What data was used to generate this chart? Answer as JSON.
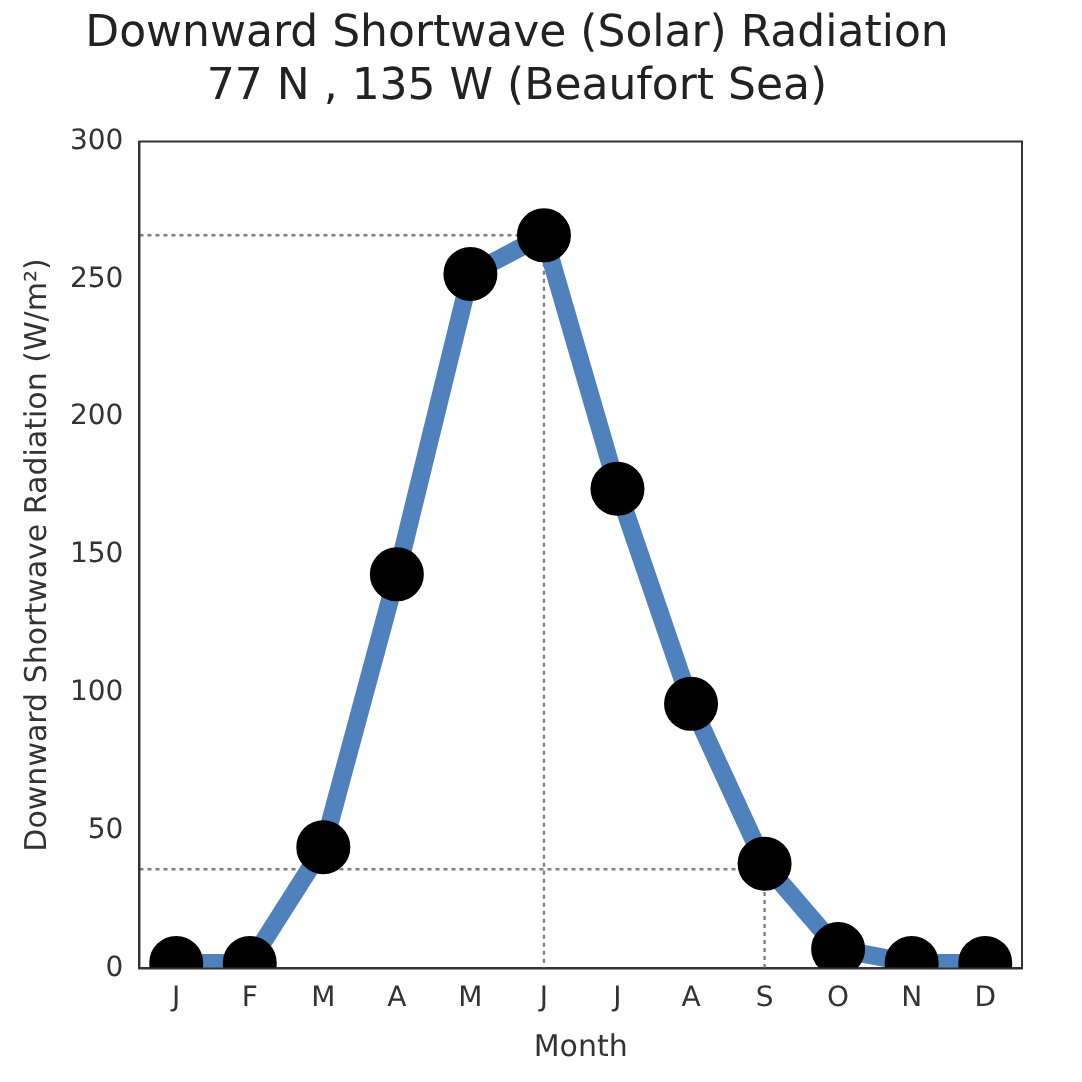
{
  "chart_data": {
    "type": "line",
    "title": "Downward Shortwave (Solar) Radiation\n77 N , 135 W (Beaufort Sea)",
    "xlabel": "Month",
    "ylabel": "Downward Shortwave Radiation (W/m²)",
    "categories": [
      "J",
      "F",
      "M",
      "A",
      "M",
      "J",
      "J",
      "A",
      "S",
      "O",
      "N",
      "D"
    ],
    "series": [
      {
        "color": "#4f81bd",
        "values": [
          2,
          2,
          44,
          143,
          252,
          266,
          174,
          96,
          38,
          7,
          2,
          2
        ]
      }
    ],
    "ylim": [
      0,
      300
    ],
    "yticks": [
      0,
      50,
      100,
      150,
      200,
      250,
      300
    ],
    "grid": false,
    "legend": false,
    "marker": "circle",
    "line_style": "solid",
    "ref_lines": [
      {
        "axis": "y",
        "value": 266,
        "color": "#808080",
        "line_style": "dotted"
      },
      {
        "axis": "y",
        "value": 36,
        "color": "#808080",
        "line_style": "dotted"
      }
    ]
  }
}
